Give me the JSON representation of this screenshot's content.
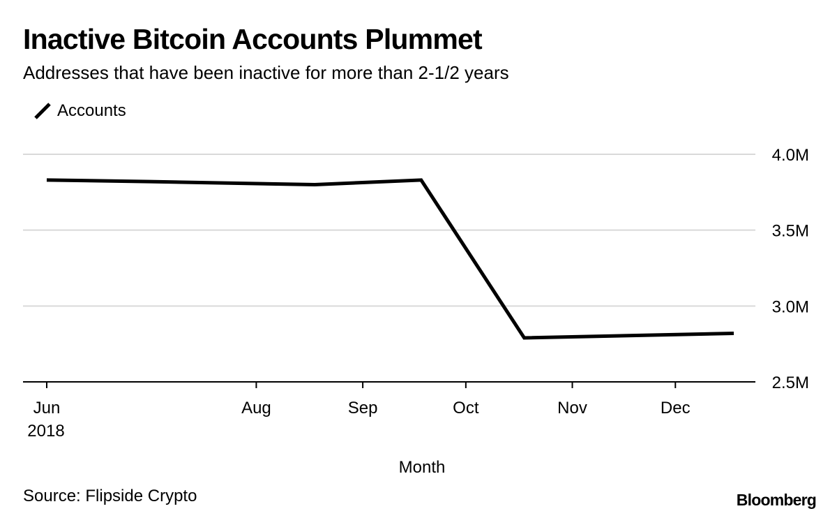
{
  "header": {
    "title": "Inactive Bitcoin Accounts Plummet",
    "subtitle": "Addresses that have been inactive for more than 2-1/2 years"
  },
  "footer": {
    "source": "Source: Flipside Crypto",
    "logo": "Bloomberg"
  },
  "colors": {
    "line": "#000000",
    "grid": "#d9d9d9",
    "axis": "#000000",
    "text": "#000000"
  },
  "chart_data": {
    "type": "line",
    "title": "Inactive Bitcoin Accounts Plummet",
    "subtitle": "Addresses that have been inactive for more than 2-1/2 years",
    "xlabel": "Month",
    "ylabel": "",
    "y_axis_position": "right",
    "ylim": [
      2500000,
      4000000
    ],
    "y_ticks": [
      {
        "value": 4000000,
        "label": "4.0M"
      },
      {
        "value": 3500000,
        "label": "3.5M"
      },
      {
        "value": 3000000,
        "label": "3.0M"
      },
      {
        "value": 2500000,
        "label": "2.5M"
      }
    ],
    "xlim": [
      "2018-05-31",
      "2018-12-31"
    ],
    "x_ticks": [
      {
        "date": "2018-06-01",
        "label": "Jun",
        "sublabel": "2018"
      },
      {
        "date": "2018-08-01",
        "label": "Aug",
        "sublabel": ""
      },
      {
        "date": "2018-09-01",
        "label": "Sep",
        "sublabel": ""
      },
      {
        "date": "2018-10-01",
        "label": "Oct",
        "sublabel": ""
      },
      {
        "date": "2018-11-01",
        "label": "Nov",
        "sublabel": ""
      },
      {
        "date": "2018-12-01",
        "label": "Dec",
        "sublabel": ""
      }
    ],
    "grid": true,
    "legend_position": "top-left",
    "series": [
      {
        "name": "Accounts",
        "color": "#000000",
        "points": [
          {
            "x": "2018-06-01",
            "y": 3830000
          },
          {
            "x": "2018-07-01",
            "y": 3820000
          },
          {
            "x": "2018-08-18",
            "y": 3800000
          },
          {
            "x": "2018-09-18",
            "y": 3830000
          },
          {
            "x": "2018-10-18",
            "y": 2790000
          },
          {
            "x": "2018-12-18",
            "y": 2820000
          }
        ]
      }
    ]
  }
}
